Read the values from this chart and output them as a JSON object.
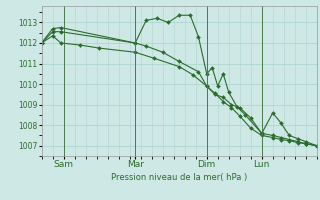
{
  "background_color": "#cde8e5",
  "grid_color": "#afd4d0",
  "line_color": "#2d6b2d",
  "vline_color": "#888888",
  "ylabel": "Pression niveau de la mer( hPa )",
  "ylim": [
    1006.5,
    1013.8
  ],
  "yticks": [
    1007,
    1008,
    1009,
    1010,
    1011,
    1012,
    1013
  ],
  "day_labels": [
    "Sam",
    "Mar",
    "Dim",
    "Lun"
  ],
  "day_positions": [
    0.08,
    0.34,
    0.6,
    0.8
  ],
  "series1": [
    [
      0.0,
      1012.0
    ],
    [
      0.04,
      1012.7
    ],
    [
      0.07,
      1012.75
    ],
    [
      0.34,
      1012.0
    ],
    [
      0.38,
      1013.1
    ],
    [
      0.42,
      1013.2
    ],
    [
      0.46,
      1013.0
    ],
    [
      0.5,
      1013.35
    ],
    [
      0.54,
      1013.35
    ],
    [
      0.57,
      1012.3
    ],
    [
      0.6,
      1010.5
    ],
    [
      0.62,
      1010.8
    ],
    [
      0.64,
      1009.9
    ],
    [
      0.66,
      1010.5
    ],
    [
      0.68,
      1009.6
    ],
    [
      0.71,
      1008.9
    ],
    [
      0.74,
      1008.5
    ],
    [
      0.8,
      1007.6
    ],
    [
      0.84,
      1008.6
    ],
    [
      0.87,
      1008.1
    ],
    [
      0.9,
      1007.5
    ],
    [
      0.93,
      1007.35
    ],
    [
      0.96,
      1007.2
    ],
    [
      1.0,
      1007.0
    ]
  ],
  "series2": [
    [
      0.0,
      1012.0
    ],
    [
      0.04,
      1012.55
    ],
    [
      0.07,
      1012.55
    ],
    [
      0.34,
      1012.0
    ],
    [
      0.38,
      1011.85
    ],
    [
      0.44,
      1011.55
    ],
    [
      0.5,
      1011.1
    ],
    [
      0.57,
      1010.6
    ],
    [
      0.6,
      1009.9
    ],
    [
      0.63,
      1009.5
    ],
    [
      0.66,
      1009.35
    ],
    [
      0.69,
      1009.0
    ],
    [
      0.72,
      1008.85
    ],
    [
      0.76,
      1008.35
    ],
    [
      0.8,
      1007.6
    ],
    [
      0.84,
      1007.5
    ],
    [
      0.87,
      1007.4
    ],
    [
      0.9,
      1007.3
    ],
    [
      0.93,
      1007.2
    ],
    [
      0.96,
      1007.1
    ],
    [
      1.0,
      1007.0
    ]
  ],
  "series3": [
    [
      0.0,
      1012.0
    ],
    [
      0.04,
      1012.35
    ],
    [
      0.07,
      1012.0
    ],
    [
      0.14,
      1011.9
    ],
    [
      0.21,
      1011.75
    ],
    [
      0.34,
      1011.55
    ],
    [
      0.41,
      1011.25
    ],
    [
      0.5,
      1010.85
    ],
    [
      0.55,
      1010.45
    ],
    [
      0.6,
      1009.9
    ],
    [
      0.63,
      1009.55
    ],
    [
      0.66,
      1009.15
    ],
    [
      0.69,
      1008.85
    ],
    [
      0.72,
      1008.45
    ],
    [
      0.76,
      1007.85
    ],
    [
      0.8,
      1007.5
    ],
    [
      0.84,
      1007.4
    ],
    [
      0.87,
      1007.3
    ],
    [
      0.9,
      1007.25
    ],
    [
      0.93,
      1007.15
    ],
    [
      0.96,
      1007.1
    ],
    [
      1.0,
      1007.0
    ]
  ]
}
